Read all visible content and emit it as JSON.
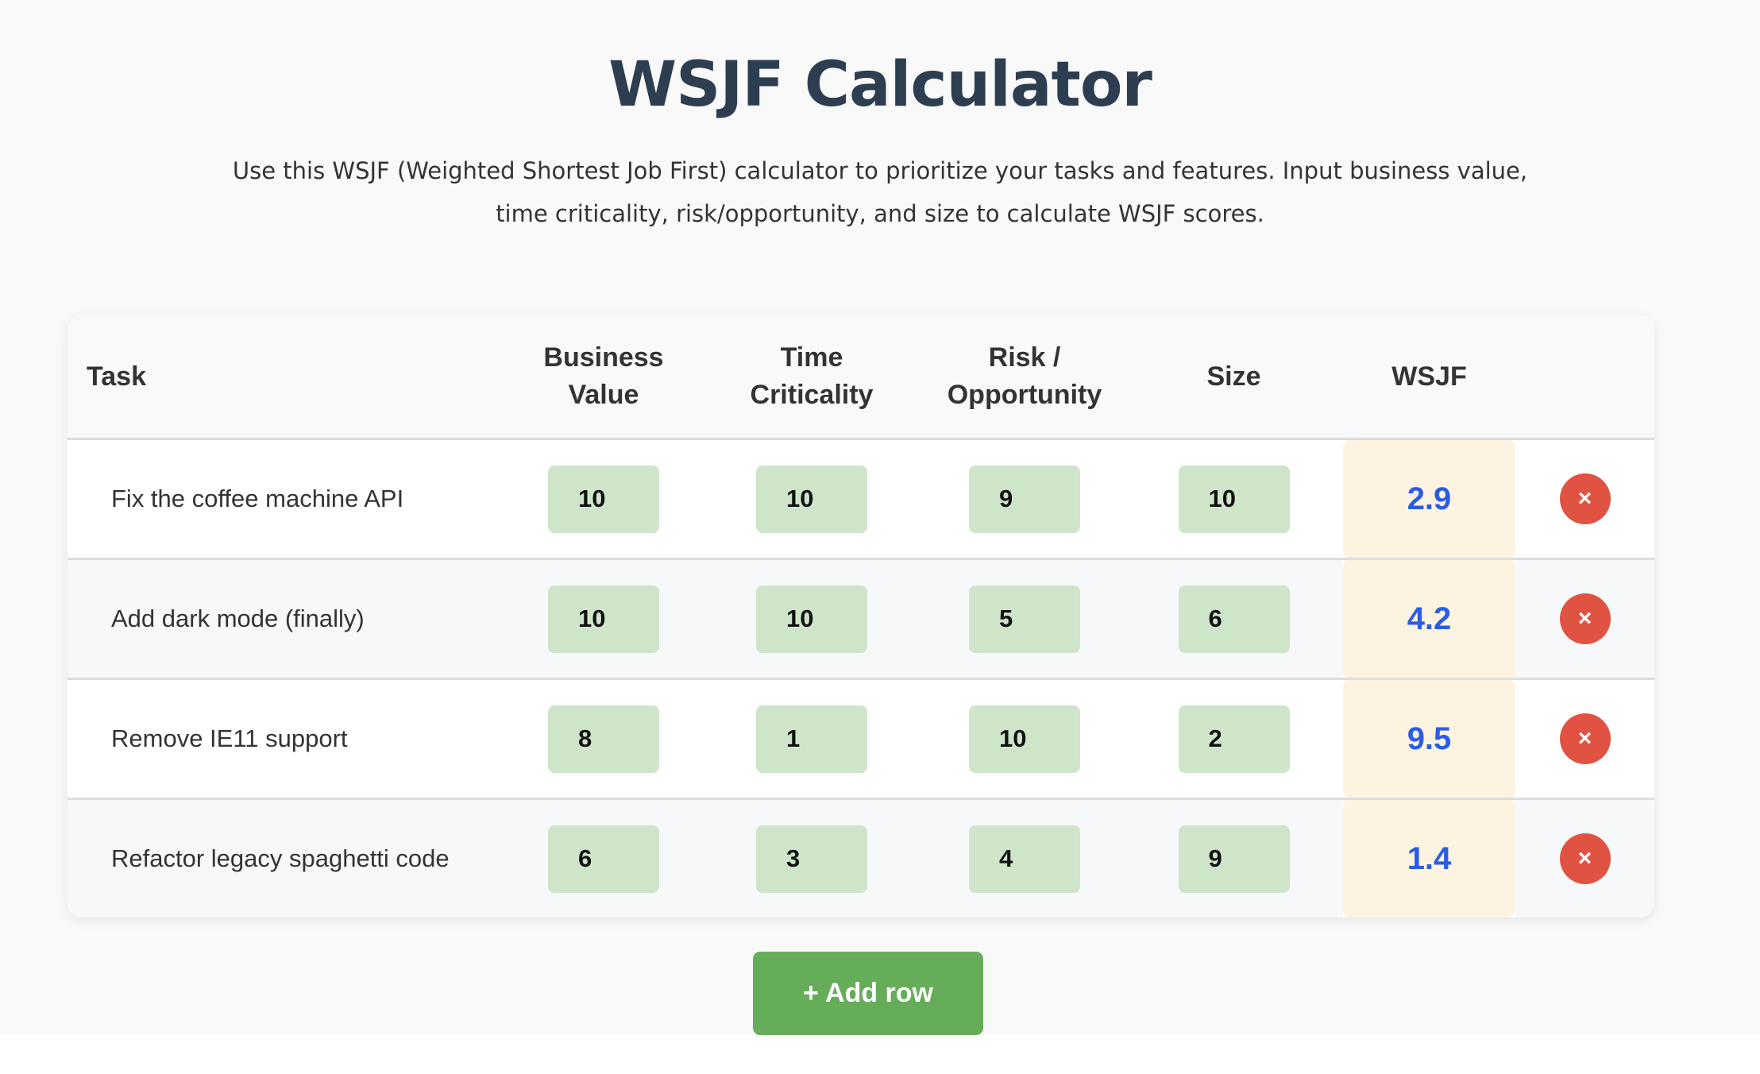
{
  "title": "WSJF Calculator",
  "description": "Use this WSJF (Weighted Shortest Job First) calculator to prioritize your tasks and features. Input business value, time criticality, risk/opportunity, and size to calculate WSJF scores.",
  "table": {
    "headers": {
      "task": "Task",
      "business_value": "Business Value",
      "time_criticality": "Time Criticality",
      "risk_opportunity": "Risk / Opportunity",
      "size": "Size",
      "wsjf": "WSJF"
    },
    "rows": [
      {
        "task": "Fix the coffee machine API",
        "business_value": "10",
        "time_criticality": "10",
        "risk_opportunity": "9",
        "size": "10",
        "wsjf": "2.9",
        "delete_label": "×"
      },
      {
        "task": "Add dark mode (finally)",
        "business_value": "10",
        "time_criticality": "10",
        "risk_opportunity": "5",
        "size": "6",
        "wsjf": "4.2",
        "delete_label": "×"
      },
      {
        "task": "Remove IE11 support",
        "business_value": "8",
        "time_criticality": "1",
        "risk_opportunity": "10",
        "size": "2",
        "wsjf": "9.5",
        "delete_label": "×"
      },
      {
        "task": "Refactor legacy spaghetti code",
        "business_value": "6",
        "time_criticality": "3",
        "risk_opportunity": "4",
        "size": "9",
        "wsjf": "1.4",
        "delete_label": "×"
      }
    ]
  },
  "add_row_label": "+ Add row",
  "colors": {
    "input_bg": "#cfe5ca",
    "wsjf_bg": "#fcf3e1",
    "wsjf_text": "#2b5ce6",
    "delete": "#e05343",
    "add_button": "#66ad5a"
  }
}
